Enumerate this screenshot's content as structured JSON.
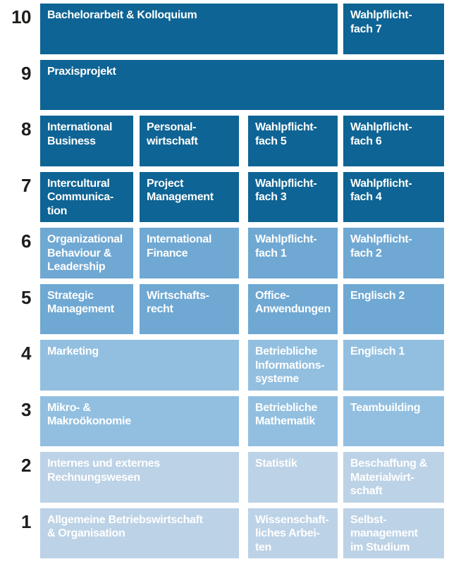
{
  "palette": {
    "tier1": "#0E6494",
    "tier2": "#6FA8D3",
    "tier3": "#92BFE0",
    "tier4": "#BCD2E6",
    "cell_text": "#FFFFFF",
    "number_text": "#1D1D1B",
    "background": "#FFFFFF"
  },
  "rows": [
    {
      "number": "10",
      "tier": "tier1",
      "cells": [
        {
          "col": 1,
          "span": 3,
          "label": "Bachelorarbeit & Kolloquium"
        },
        {
          "col": 4,
          "span": 1,
          "label": "Wahlpflicht-\nfach 7"
        }
      ]
    },
    {
      "number": "9",
      "tier": "tier1",
      "cells": [
        {
          "col": 1,
          "span": 4,
          "label": "Praxisprojekt"
        }
      ]
    },
    {
      "number": "8",
      "tier": "tier1",
      "cells": [
        {
          "col": 1,
          "span": 1,
          "label": "International\nBusiness"
        },
        {
          "col": 2,
          "span": 1,
          "label": "Personal-\nwirtschaft"
        },
        {
          "col": 3,
          "span": 1,
          "label": "Wahlpflicht-\nfach 5"
        },
        {
          "col": 4,
          "span": 1,
          "label": "Wahlpflicht-\nfach 6"
        }
      ]
    },
    {
      "number": "7",
      "tier": "tier1",
      "cells": [
        {
          "col": 1,
          "span": 1,
          "label": "Intercultural\nCommunica-\ntion"
        },
        {
          "col": 2,
          "span": 1,
          "label": "Project\nManagement"
        },
        {
          "col": 3,
          "span": 1,
          "label": "Wahlpflicht-\nfach 3"
        },
        {
          "col": 4,
          "span": 1,
          "label": "Wahlpflicht-\nfach 4"
        }
      ]
    },
    {
      "number": "6",
      "tier": "tier2",
      "cells": [
        {
          "col": 1,
          "span": 1,
          "label": "Organizational\nBehaviour &\nLeadership"
        },
        {
          "col": 2,
          "span": 1,
          "label": "International\nFinance"
        },
        {
          "col": 3,
          "span": 1,
          "label": "Wahlpflicht-\nfach 1"
        },
        {
          "col": 4,
          "span": 1,
          "label": "Wahlpflicht-\nfach 2"
        }
      ]
    },
    {
      "number": "5",
      "tier": "tier2",
      "cells": [
        {
          "col": 1,
          "span": 1,
          "label": "Strategic\nManagement"
        },
        {
          "col": 2,
          "span": 1,
          "label": "Wirtschafts-\nrecht"
        },
        {
          "col": 3,
          "span": 1,
          "label": "Office-\nAnwendungen"
        },
        {
          "col": 4,
          "span": 1,
          "label": "Englisch 2"
        }
      ]
    },
    {
      "number": "4",
      "tier": "tier3",
      "cells": [
        {
          "col": 1,
          "span": 2,
          "label": "Marketing"
        },
        {
          "col": 3,
          "span": 1,
          "label": "Betriebliche\nInformations-\nsysteme"
        },
        {
          "col": 4,
          "span": 1,
          "label": "Englisch 1"
        }
      ]
    },
    {
      "number": "3",
      "tier": "tier3",
      "cells": [
        {
          "col": 1,
          "span": 2,
          "label": "Mikro- &\nMakroökonomie"
        },
        {
          "col": 3,
          "span": 1,
          "label": "Betriebliche\nMathematik"
        },
        {
          "col": 4,
          "span": 1,
          "label": "Teambuilding"
        }
      ]
    },
    {
      "number": "2",
      "tier": "tier4",
      "cells": [
        {
          "col": 1,
          "span": 2,
          "label": "Internes und externes\nRechnungswesen"
        },
        {
          "col": 3,
          "span": 1,
          "label": "Statistik"
        },
        {
          "col": 4,
          "span": 1,
          "label": "Beschaffung &\nMaterialwirt-\nschaft"
        }
      ]
    },
    {
      "number": "1",
      "tier": "tier4",
      "cells": [
        {
          "col": 1,
          "span": 2,
          "label": "Allgemeine Betriebswirtschaft\n& Organisation"
        },
        {
          "col": 3,
          "span": 1,
          "label": "Wissenschaft-\nliches Arbei-\nten"
        },
        {
          "col": 4,
          "span": 1,
          "label": "Selbst-\nmanagement\nim Studium"
        }
      ]
    }
  ]
}
